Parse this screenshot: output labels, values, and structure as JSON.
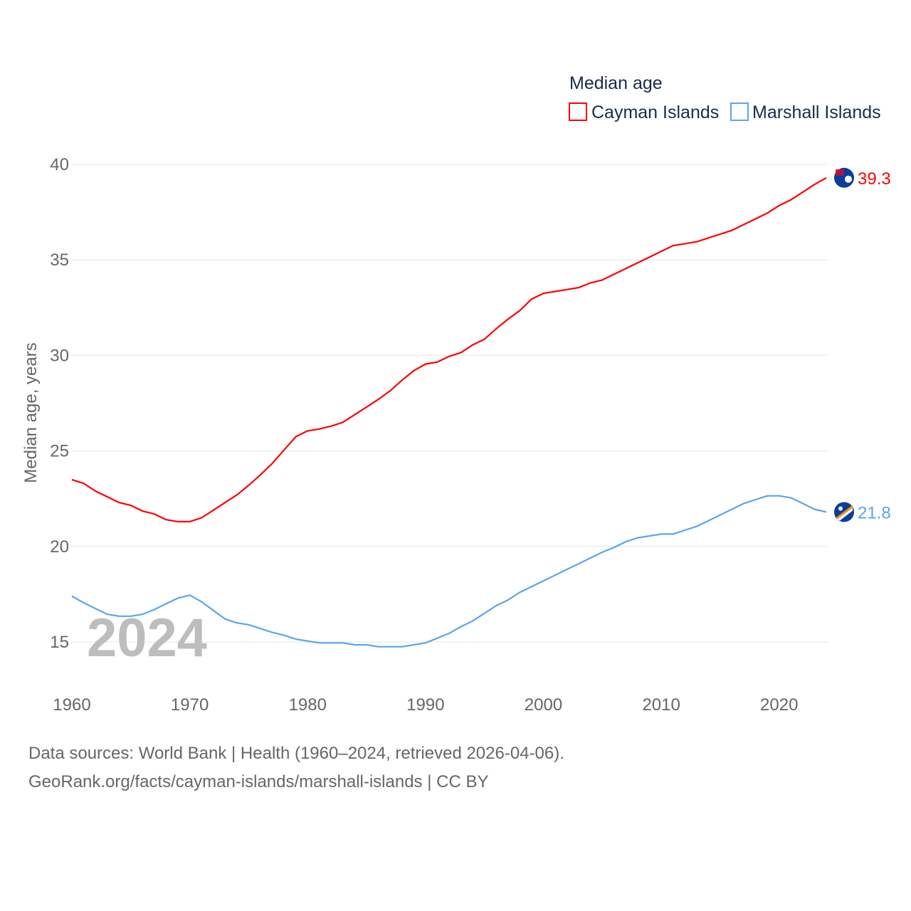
{
  "chart_data": {
    "type": "line",
    "title": "Median age",
    "ylabel": "Median age, years",
    "xlabel": "",
    "xlim": [
      1960,
      2024
    ],
    "ylim": [
      12.5,
      40
    ],
    "grid": true,
    "legend_position": "top-right",
    "x_ticks": [
      "1960",
      "1970",
      "1980",
      "1990",
      "2000",
      "2010",
      "2020"
    ],
    "y_ticks": [
      "15",
      "20",
      "25",
      "30",
      "35",
      "40"
    ],
    "watermark_year": "2024",
    "x": [
      1960,
      1961,
      1962,
      1963,
      1964,
      1965,
      1966,
      1967,
      1968,
      1969,
      1970,
      1971,
      1972,
      1973,
      1974,
      1975,
      1976,
      1977,
      1978,
      1979,
      1980,
      1981,
      1982,
      1983,
      1984,
      1985,
      1986,
      1987,
      1988,
      1989,
      1990,
      1991,
      1992,
      1993,
      1994,
      1995,
      1996,
      1997,
      1998,
      1999,
      2000,
      2001,
      2002,
      2003,
      2004,
      2005,
      2006,
      2007,
      2008,
      2009,
      2010,
      2011,
      2012,
      2013,
      2014,
      2015,
      2016,
      2017,
      2018,
      2019,
      2020,
      2021,
      2022,
      2023,
      2024
    ],
    "series": [
      {
        "name": "Cayman Islands",
        "color": "#ff0000",
        "end_label": "39.3",
        "values": [
          23.5,
          23.3,
          22.9,
          22.6,
          22.3,
          22.15,
          21.85,
          21.7,
          21.4,
          21.3,
          21.3,
          21.5,
          21.9,
          22.3,
          22.7,
          23.2,
          23.75,
          24.35,
          25.05,
          25.75,
          26.05,
          26.15,
          26.3,
          26.5,
          26.9,
          27.3,
          27.7,
          28.15,
          28.7,
          29.2,
          29.55,
          29.65,
          29.95,
          30.15,
          30.55,
          30.85,
          31.4,
          31.9,
          32.35,
          32.95,
          33.25,
          33.35,
          33.45,
          33.55,
          33.8,
          33.95,
          34.25,
          34.55,
          34.85,
          35.15,
          35.45,
          35.75,
          35.85,
          35.95,
          36.15,
          36.35,
          36.55,
          36.85,
          37.15,
          37.45,
          37.85,
          38.15,
          38.55,
          38.95,
          39.3
        ]
      },
      {
        "name": "Marshall Islands",
        "color": "#5aa5ee",
        "end_label": "21.8",
        "values": [
          17.4,
          17.05,
          16.75,
          16.45,
          16.35,
          16.35,
          16.45,
          16.7,
          17.0,
          17.3,
          17.45,
          17.1,
          16.65,
          16.2,
          16.0,
          15.9,
          15.7,
          15.5,
          15.35,
          15.15,
          15.05,
          14.95,
          14.95,
          14.95,
          14.85,
          14.85,
          14.75,
          14.75,
          14.75,
          14.85,
          14.95,
          15.2,
          15.45,
          15.8,
          16.1,
          16.5,
          16.9,
          17.2,
          17.6,
          17.9,
          18.2,
          18.5,
          18.8,
          19.1,
          19.4,
          19.7,
          19.95,
          20.25,
          20.45,
          20.55,
          20.65,
          20.65,
          20.85,
          21.05,
          21.35,
          21.65,
          21.95,
          22.25,
          22.45,
          22.65,
          22.65,
          22.55,
          22.25,
          21.95,
          21.8
        ]
      }
    ]
  },
  "footer": {
    "line1": "Data sources: World Bank | Health (1960–2024, retrieved 2026-04-06).",
    "line2": "GeoRank.org/facts/cayman-islands/marshall-islands | CC BY"
  }
}
